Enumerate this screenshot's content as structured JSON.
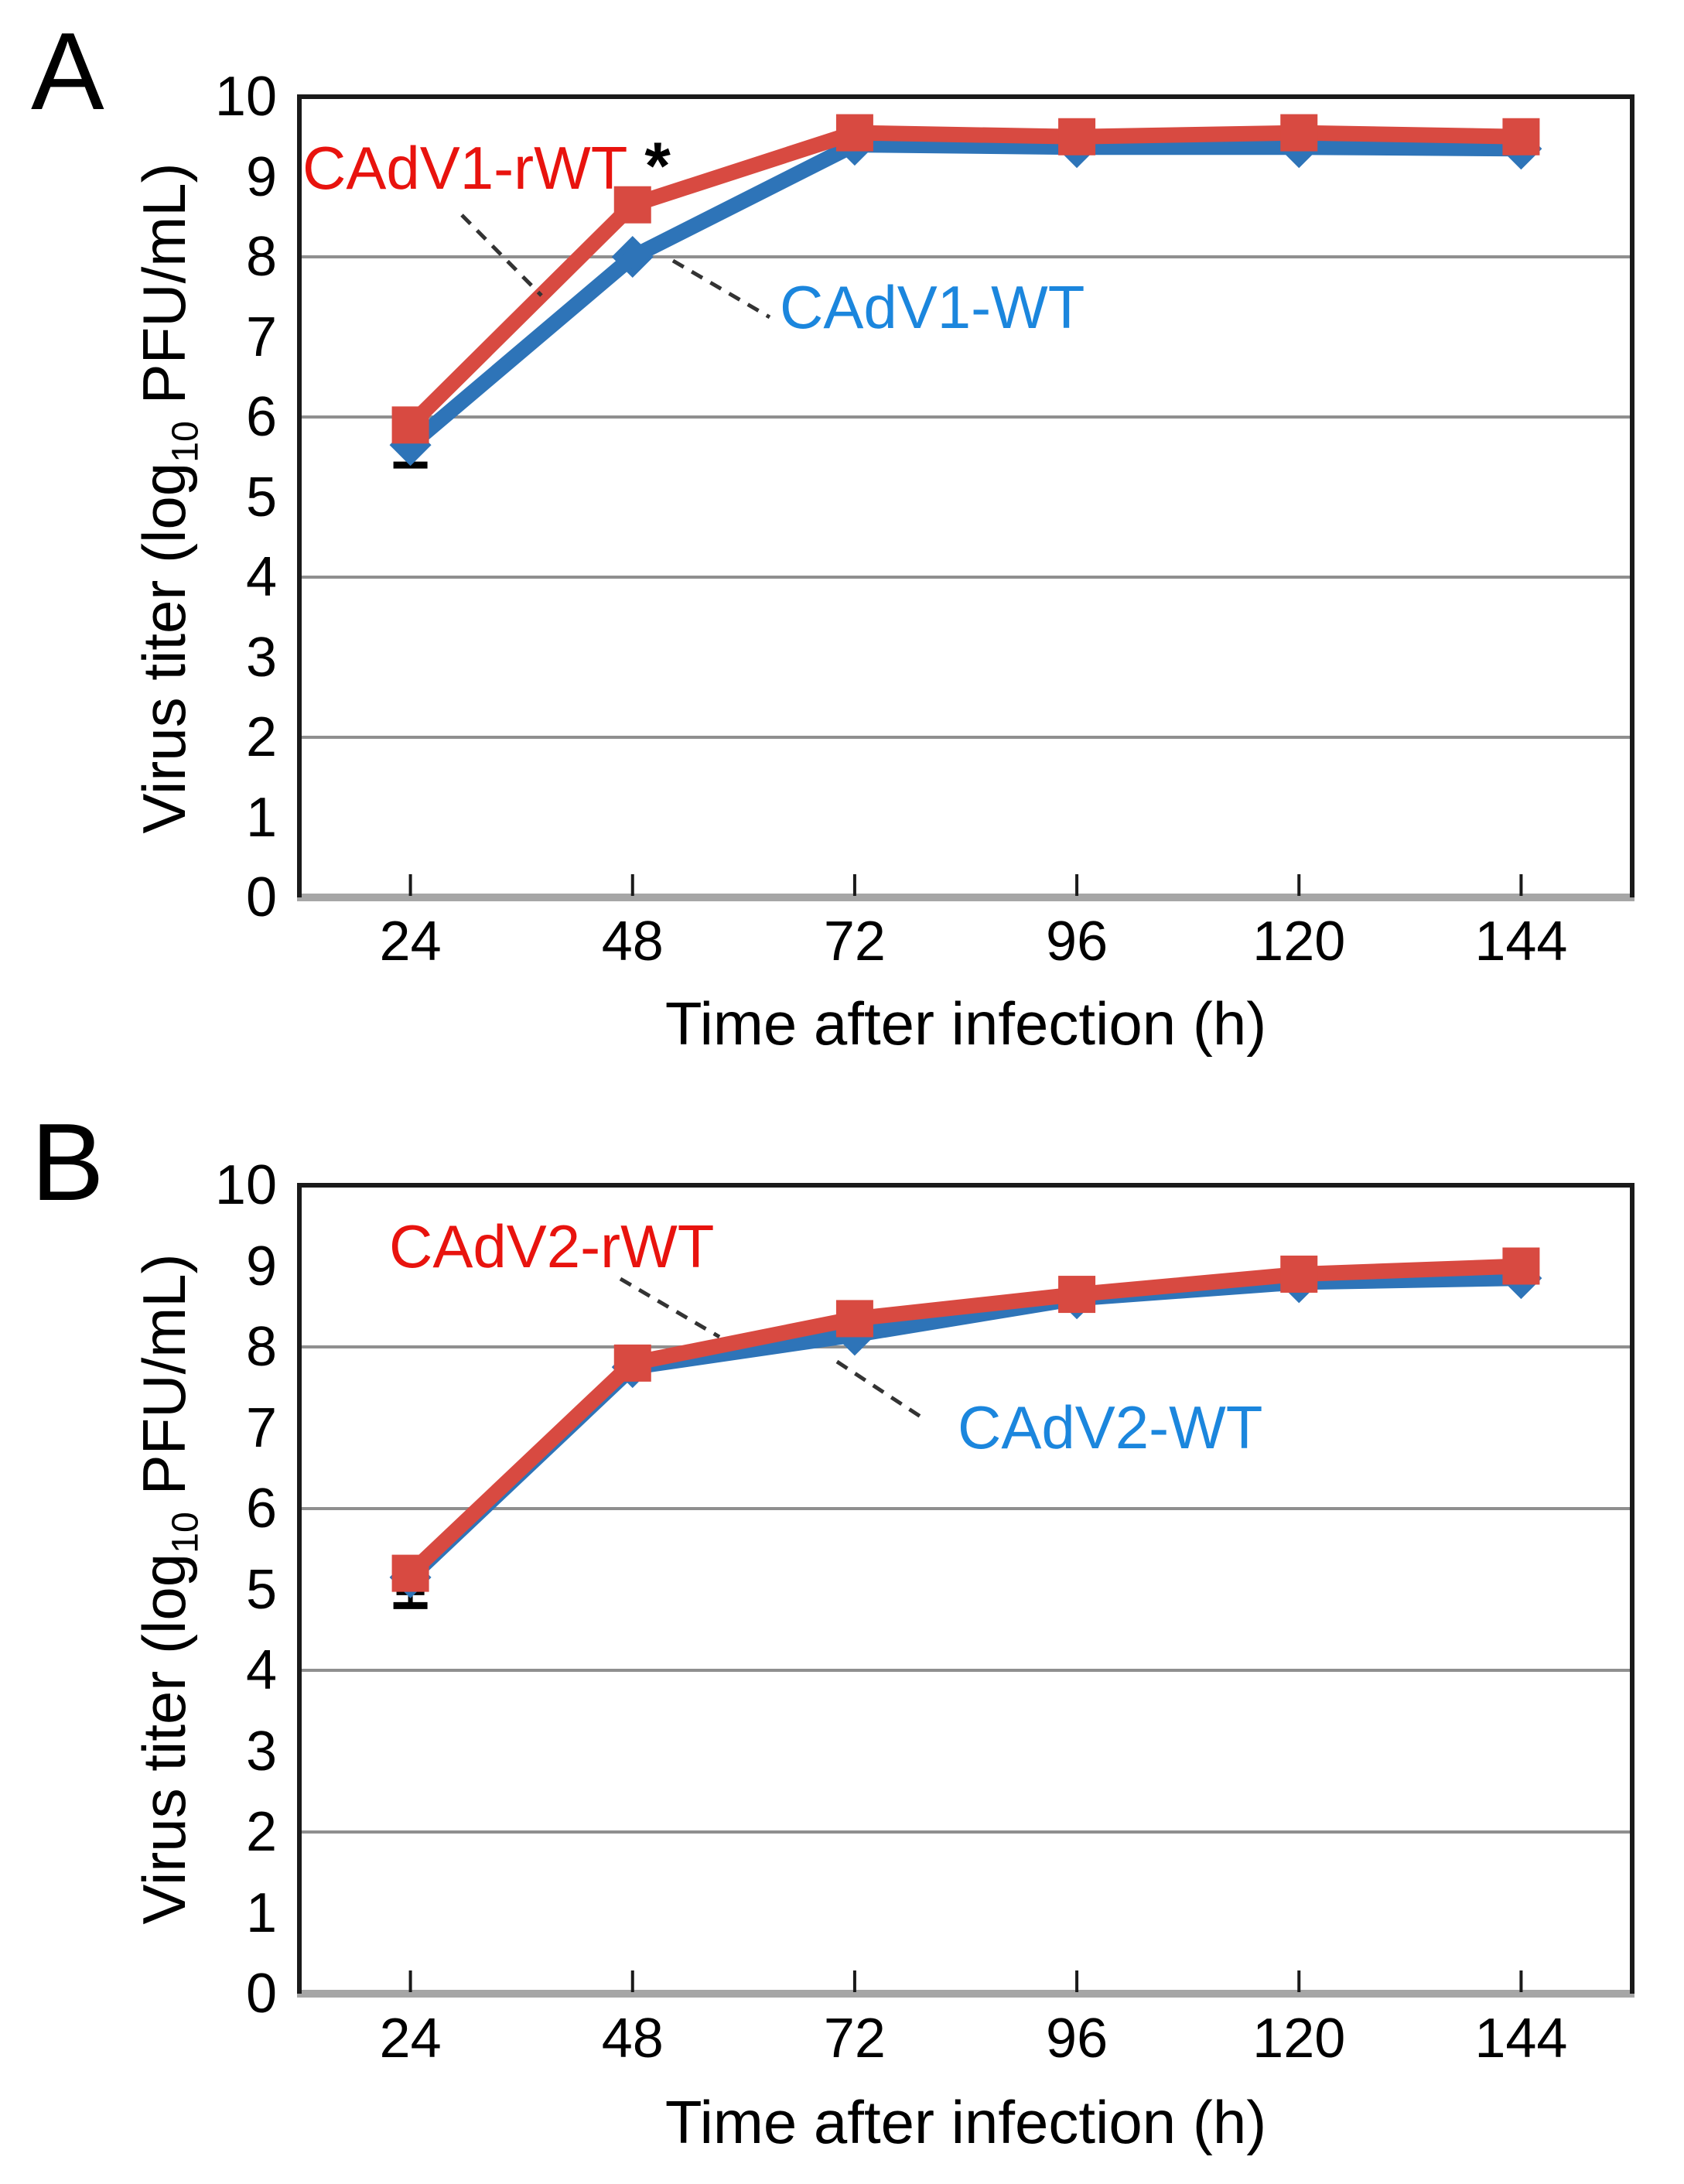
{
  "colors": {
    "background": "#ffffff",
    "red_series": "#d84a41",
    "blue_series": "#2e74b8",
    "red_label_text": "#e8130e",
    "blue_label_text": "#1b86dd",
    "gridline": "#8f8f8f",
    "axis_frame": "#1a1a1a",
    "axis_baseline": "#a6a6a6",
    "error_bar": "#000000",
    "leader_line": "#333333"
  },
  "panels": [
    {
      "letter": "A",
      "y_axis_title_prefix": "Virus titer (log",
      "y_axis_title_sub": "10",
      "y_axis_title_suffix": " PFU/mL)"
    },
    {
      "letter": "B",
      "y_axis_title_prefix": "Virus titer (log",
      "y_axis_title_sub": "10",
      "y_axis_title_suffix": " PFU/mL)"
    }
  ],
  "chart_data": [
    {
      "type": "line",
      "panel": "A",
      "title": "",
      "xlabel": "Time after infection (h)",
      "ylabel": "Virus titer (log10 PFU/mL)",
      "x": [
        24,
        48,
        72,
        96,
        120,
        144
      ],
      "x_tick_labels": [
        "24",
        "48",
        "72",
        "96",
        "120",
        "144"
      ],
      "y_tick_labels": [
        "0",
        "1",
        "2",
        "3",
        "4",
        "5",
        "6",
        "7",
        "8",
        "9",
        "10"
      ],
      "ylim": [
        0,
        10
      ],
      "grid_y_values": [
        2,
        4,
        6,
        8
      ],
      "legend_position": "inline-annotations",
      "significance": {
        "text": "*",
        "at_x": 48,
        "applies_to": "CAdV1-rWT vs CAdV1-WT"
      },
      "series": [
        {
          "name": "CAdV1-rWT",
          "marker": "square",
          "color": "#d84a41",
          "values": [
            5.9,
            8.65,
            9.55,
            9.5,
            9.55,
            9.5
          ]
        },
        {
          "name": "CAdV1-WT",
          "marker": "diamond",
          "color": "#2e74b8",
          "values": [
            5.65,
            8.0,
            9.4,
            9.37,
            9.37,
            9.35
          ],
          "error_minus": [
            0.25,
            0,
            0,
            0,
            0,
            0
          ]
        }
      ]
    },
    {
      "type": "line",
      "panel": "B",
      "title": "",
      "xlabel": "Time after infection (h)",
      "ylabel": "Virus titer (log10 PFU/mL)",
      "x": [
        24,
        48,
        72,
        96,
        120,
        144
      ],
      "x_tick_labels": [
        "24",
        "48",
        "72",
        "96",
        "120",
        "144"
      ],
      "y_tick_labels": [
        "0",
        "1",
        "2",
        "3",
        "4",
        "5",
        "6",
        "7",
        "8",
        "9",
        "10"
      ],
      "ylim": [
        0,
        10
      ],
      "grid_y_values": [
        2,
        4,
        6,
        8
      ],
      "legend_position": "inline-annotations",
      "series": [
        {
          "name": "CAdV2-rWT",
          "marker": "square",
          "color": "#d84a41",
          "values": [
            5.2,
            7.8,
            8.35,
            8.65,
            8.9,
            9.0
          ],
          "error_minus": [
            0.4,
            0,
            0,
            0,
            0,
            0
          ]
        },
        {
          "name": "CAdV2-WT",
          "marker": "diamond",
          "color": "#2e74b8",
          "values": [
            5.15,
            7.75,
            8.15,
            8.6,
            8.8,
            8.85
          ]
        }
      ]
    }
  ]
}
